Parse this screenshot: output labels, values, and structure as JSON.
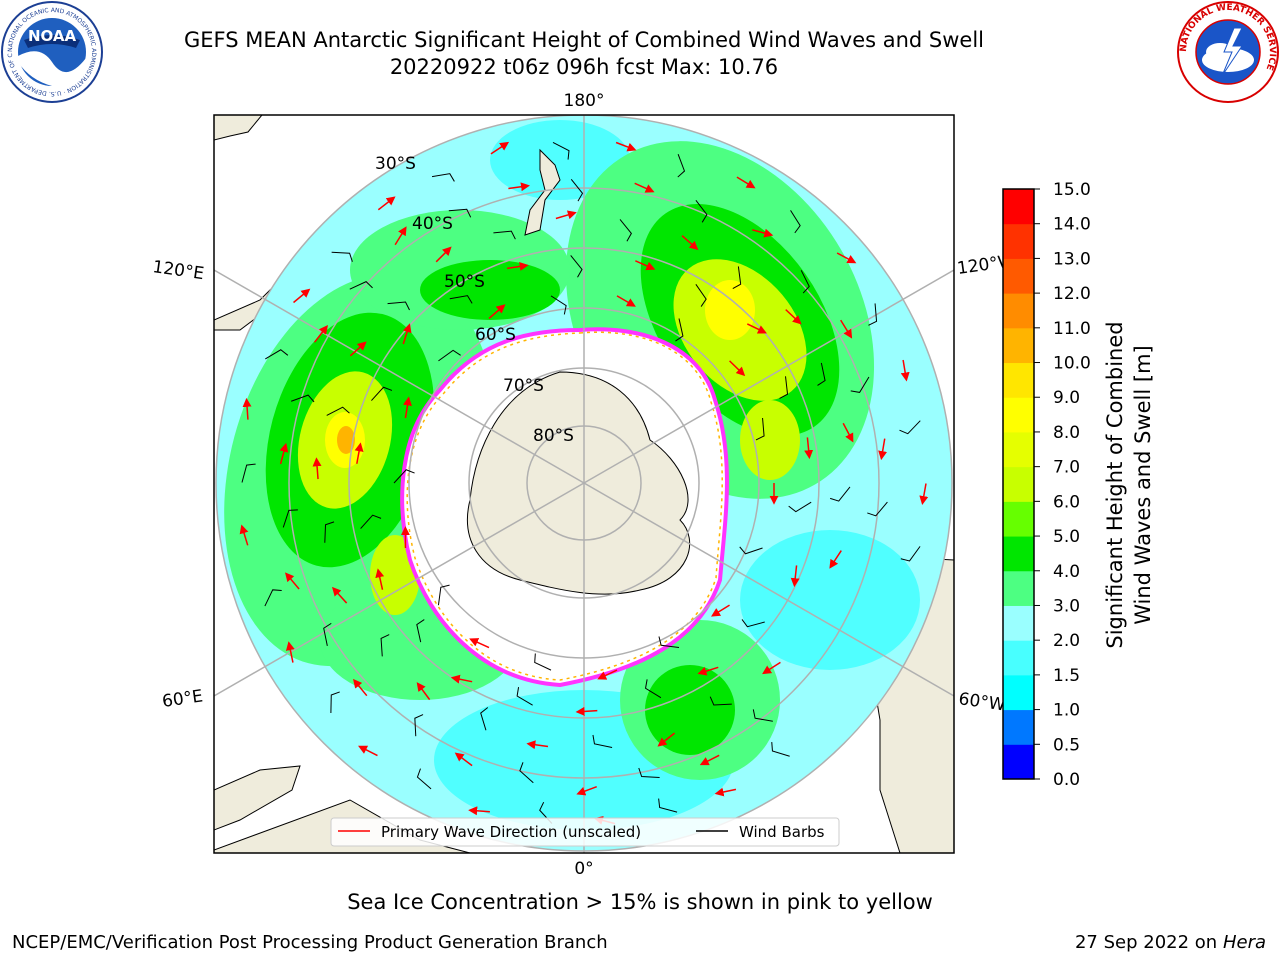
{
  "title": {
    "line1": "GEFS MEAN Antarctic Significant Height of Combined Wind Waves and Swell",
    "line2": "20220922 t06z 096h fcst   Max: 10.76"
  },
  "logos": {
    "noaa": {
      "text": "NOAA",
      "ring": "NATIONAL OCEANIC AND ATMOSPHERIC ADMINISTRATION · U.S. DEPARTMENT OF COMMERCE ·"
    },
    "nws": {
      "ring": "NATIONAL WEATHER SERVICE"
    }
  },
  "map": {
    "projection": "south-polar-stereographic",
    "lon_labels": {
      "top": "180°",
      "bottom": "0°",
      "upper_left": "120°E",
      "lower_left": "60°E",
      "upper_right": "120°W",
      "lower_right": "60°W"
    },
    "lat_labels": [
      "30°S",
      "40°S",
      "50°S",
      "60°S",
      "70°S",
      "80°S"
    ],
    "legend": {
      "wave_dir": "Primary Wave Direction (unscaled)",
      "wind_barbs": "Wind Barbs"
    },
    "colors": {
      "land": "#efecdc",
      "ice_edge": "#ff33ff",
      "grid": "#b0b0b0",
      "arrow": "#ff0000",
      "barb": "#000000"
    }
  },
  "colorbar": {
    "label_line1": "Significant Height of Combined",
    "label_line2": "Wind Waves and Swell [m]",
    "ticks": [
      "0.0",
      "0.5",
      "1.0",
      "1.5",
      "2.0",
      "3.0",
      "4.0",
      "5.0",
      "6.0",
      "7.0",
      "8.0",
      "9.0",
      "10.0",
      "11.0",
      "12.0",
      "13.0",
      "14.0",
      "15.0"
    ],
    "colors": [
      "#0000ff",
      "#0078ff",
      "#00ffff",
      "#48ffff",
      "#9affff",
      "#4dff82",
      "#00e600",
      "#66ff00",
      "#c8ff00",
      "#e5ff00",
      "#ffff00",
      "#ffe600",
      "#ffb400",
      "#ff8c00",
      "#ff5a00",
      "#ff3200",
      "#ff0000"
    ]
  },
  "note": "Sea Ice Concentration > 15% is shown in pink to yellow",
  "footer": {
    "left": "NCEP/EMC/Verification Post Processing Product Generation Branch",
    "date": "27 Sep 2022 on",
    "host": "Hera"
  }
}
